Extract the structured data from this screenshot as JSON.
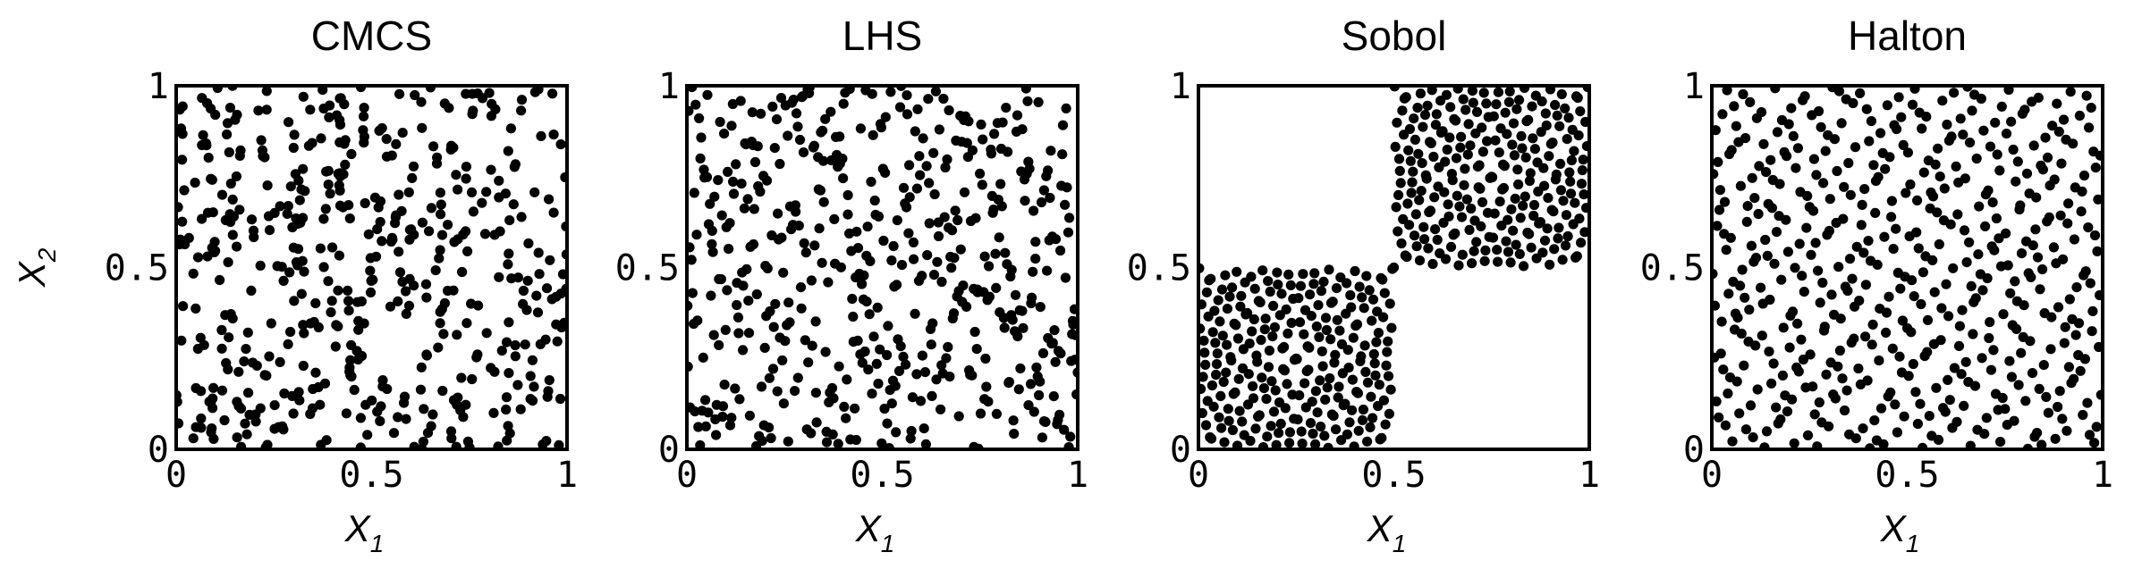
{
  "chart_data": [
    {
      "type": "scatter",
      "title": "CMCS",
      "xlabel": "X1",
      "ylabel": "X2",
      "xlim": [
        0,
        1
      ],
      "ylim": [
        0,
        1
      ],
      "xticks": [
        "0",
        "0.5",
        "1"
      ],
      "yticks": [
        "0",
        "0.5",
        "1"
      ],
      "point_color": "#000000",
      "method": "crude",
      "n_points": 500,
      "seed": 11,
      "grid": false
    },
    {
      "type": "scatter",
      "title": "LHS",
      "xlabel": "X1",
      "ylabel": "",
      "xlim": [
        0,
        1
      ],
      "ylim": [
        0,
        1
      ],
      "xticks": [
        "0",
        "0.5",
        "1"
      ],
      "yticks": [
        "0",
        "0.5",
        "1"
      ],
      "point_color": "#000000",
      "method": "lhs",
      "n_points": 500,
      "seed": 29,
      "grid": false
    },
    {
      "type": "scatter",
      "title": "Sobol",
      "xlabel": "X1",
      "ylabel": "",
      "xlim": [
        0,
        1
      ],
      "ylim": [
        0,
        1
      ],
      "xticks": [
        "0",
        "0.5",
        "1"
      ],
      "yticks": [
        "0",
        "0.5",
        "1"
      ],
      "point_color": "#000000",
      "method": "sobol",
      "n_points": 500,
      "grid": false
    },
    {
      "type": "scatter",
      "title": "Halton",
      "xlabel": "X1",
      "ylabel": "",
      "xlim": [
        0,
        1
      ],
      "ylim": [
        0,
        1
      ],
      "xticks": [
        "0",
        "0.5",
        "1"
      ],
      "yticks": [
        "0",
        "0.5",
        "1"
      ],
      "point_color": "#000000",
      "method": "halton",
      "n_points": 500,
      "grid": false
    }
  ]
}
